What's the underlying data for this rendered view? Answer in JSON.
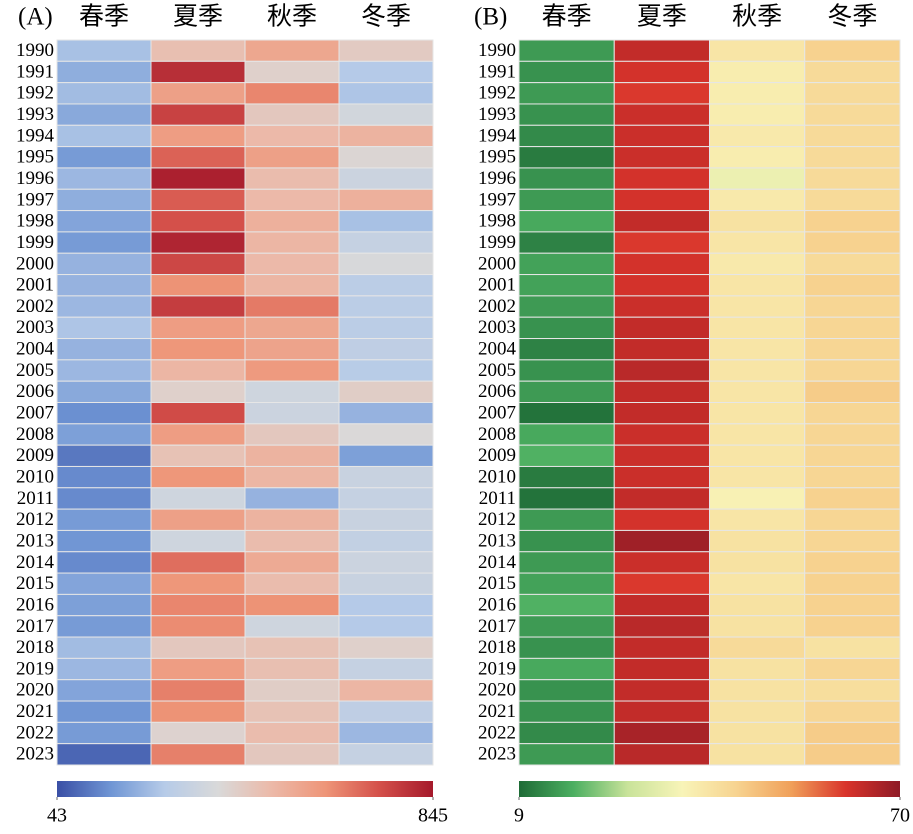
{
  "chart_data": [
    {
      "type": "heatmap",
      "panel_label": "(A)",
      "categories": [
        "春季",
        "夏季",
        "秋季",
        "冬季"
      ],
      "years": [
        "1990",
        "1991",
        "1992",
        "1993",
        "1994",
        "1995",
        "1996",
        "1997",
        "1998",
        "1999",
        "2000",
        "2001",
        "2002",
        "2003",
        "2004",
        "2005",
        "2006",
        "2007",
        "2008",
        "2009",
        "2010",
        "2011",
        "2012",
        "2013",
        "2014",
        "2015",
        "2016",
        "2017",
        "2018",
        "2019",
        "2020",
        "2021",
        "2022",
        "2023"
      ],
      "values": [
        [
          250,
          480,
          560,
          440
        ],
        [
          210,
          800,
          420,
          270
        ],
        [
          240,
          580,
          640,
          260
        ],
        [
          200,
          760,
          450,
          360
        ],
        [
          250,
          590,
          500,
          520
        ],
        [
          170,
          700,
          580,
          400
        ],
        [
          230,
          830,
          490,
          340
        ],
        [
          210,
          710,
          500,
          530
        ],
        [
          190,
          730,
          530,
          250
        ],
        [
          170,
          820,
          510,
          320
        ],
        [
          220,
          750,
          500,
          380
        ],
        [
          220,
          620,
          510,
          290
        ],
        [
          230,
          770,
          660,
          290
        ],
        [
          260,
          590,
          560,
          290
        ],
        [
          220,
          610,
          570,
          300
        ],
        [
          230,
          510,
          600,
          280
        ],
        [
          200,
          420,
          350,
          430
        ],
        [
          150,
          740,
          340,
          220
        ],
        [
          180,
          590,
          450,
          390
        ],
        [
          110,
          470,
          520,
          180
        ],
        [
          140,
          610,
          510,
          330
        ],
        [
          140,
          350,
          220,
          320
        ],
        [
          170,
          580,
          520,
          330
        ],
        [
          160,
          350,
          490,
          310
        ],
        [
          140,
          680,
          550,
          340
        ],
        [
          190,
          610,
          490,
          330
        ],
        [
          180,
          640,
          620,
          270
        ],
        [
          170,
          630,
          350,
          270
        ],
        [
          240,
          450,
          470,
          420
        ],
        [
          230,
          590,
          480,
          320
        ],
        [
          190,
          650,
          430,
          510
        ],
        [
          160,
          620,
          470,
          300
        ],
        [
          170,
          410,
          490,
          230
        ],
        [
          80,
          650,
          450,
          320
        ]
      ],
      "zlim": [
        43,
        845
      ],
      "colorbar_ticks": [
        43,
        845
      ],
      "colorscale": [
        "#3a4fa5",
        "#6f95d4",
        "#b6cbe8",
        "#d9d9d9",
        "#ecb9a8",
        "#ee9578",
        "#d4504a",
        "#a5192b"
      ]
    },
    {
      "type": "heatmap",
      "panel_label": "(B)",
      "categories": [
        "春季",
        "夏季",
        "秋季",
        "冬季"
      ],
      "years": [
        "1990",
        "1991",
        "1992",
        "1993",
        "1994",
        "1995",
        "1996",
        "1997",
        "1998",
        "1999",
        "2000",
        "2001",
        "2002",
        "2003",
        "2004",
        "2005",
        "2006",
        "2007",
        "2008",
        "2009",
        "2010",
        "2011",
        "2012",
        "2013",
        "2014",
        "2015",
        "2016",
        "2017",
        "2018",
        "2019",
        "2020",
        "2021",
        "2022",
        "2023"
      ],
      "values": [
        [
          15,
          64,
          39,
          44
        ],
        [
          14,
          62,
          37,
          42
        ],
        [
          15,
          61,
          37,
          42
        ],
        [
          14,
          63,
          37,
          42
        ],
        [
          13,
          63,
          38,
          42
        ],
        [
          11,
          63,
          37,
          42
        ],
        [
          14,
          62,
          33,
          42
        ],
        [
          15,
          62,
          38,
          42
        ],
        [
          17,
          64,
          40,
          44
        ],
        [
          12,
          61,
          39,
          44
        ],
        [
          16,
          62,
          38,
          42
        ],
        [
          16,
          62,
          39,
          44
        ],
        [
          15,
          63,
          39,
          43
        ],
        [
          14,
          64,
          39,
          43
        ],
        [
          12,
          64,
          39,
          43
        ],
        [
          14,
          65,
          39,
          43
        ],
        [
          15,
          64,
          39,
          45
        ],
        [
          10,
          64,
          39,
          43
        ],
        [
          17,
          63,
          39,
          43
        ],
        [
          18,
          63,
          39,
          43
        ],
        [
          11,
          63,
          39,
          43
        ],
        [
          10,
          64,
          36,
          44
        ],
        [
          15,
          62,
          39,
          43
        ],
        [
          14,
          68,
          40,
          43
        ],
        [
          15,
          63,
          40,
          44
        ],
        [
          16,
          61,
          39,
          44
        ],
        [
          18,
          64,
          40,
          44
        ],
        [
          15,
          65,
          40,
          44
        ],
        [
          14,
          64,
          42,
          40
        ],
        [
          17,
          64,
          40,
          43
        ],
        [
          14,
          64,
          40,
          41
        ],
        [
          14,
          64,
          40,
          43
        ],
        [
          13,
          67,
          40,
          45
        ],
        [
          15,
          65,
          40,
          45
        ]
      ],
      "zlim": [
        9,
        70
      ],
      "colorbar_ticks": [
        9,
        70
      ],
      "colorscale": [
        "#1e6b36",
        "#4caf61",
        "#c9e39a",
        "#f8f4b8",
        "#f7d390",
        "#f0a05a",
        "#d9342b",
        "#8e1a26"
      ]
    }
  ]
}
